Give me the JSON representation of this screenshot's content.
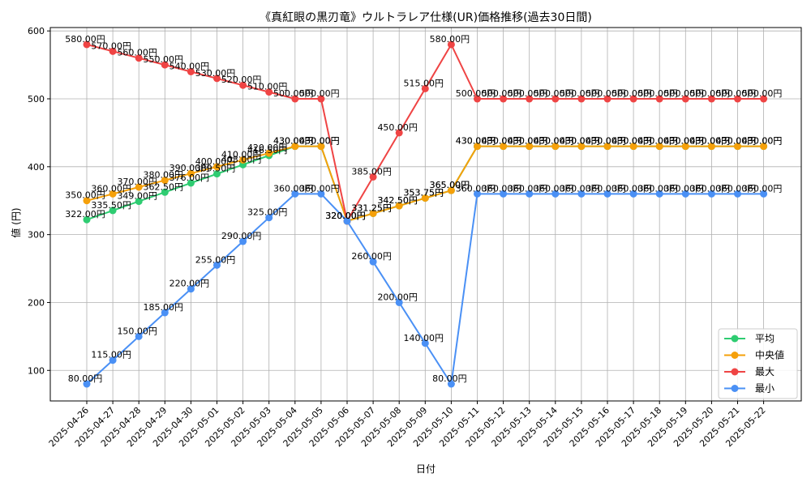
{
  "chart_data": {
    "type": "line",
    "title": "《真紅眼の黒刃竜》ウルトラレア仕様(UR)価格推移(過去30日間)",
    "xlabel": "日付",
    "ylabel": "値 (円)",
    "ylim": [
      55,
      605
    ],
    "yticks": [
      100,
      200,
      300,
      400,
      500,
      600
    ],
    "grid": true,
    "legend_position": "bottom-right",
    "categories": [
      "2025-04-26",
      "2025-04-27",
      "2025-04-28",
      "2025-04-29",
      "2025-04-30",
      "2025-05-01",
      "2025-05-02",
      "2025-05-03",
      "2025-05-04",
      "2025-05-05",
      "2025-05-06",
      "2025-05-07",
      "2025-05-08",
      "2025-05-09",
      "2025-05-10",
      "2025-05-11",
      "2025-05-12",
      "2025-05-13",
      "2025-05-14",
      "2025-05-15",
      "2025-05-16",
      "2025-05-17",
      "2025-05-18",
      "2025-05-19",
      "2025-05-20",
      "2025-05-21",
      "2025-05-22"
    ],
    "series": [
      {
        "name": "平均",
        "color": "#2ecc71",
        "values": [
          322,
          335.5,
          349,
          362.5,
          376,
          389.5,
          403,
          416.5,
          430,
          430,
          320,
          331.25,
          342.5,
          353.75,
          365,
          430,
          430,
          430,
          430,
          430,
          430,
          430,
          430,
          430,
          430,
          430,
          430
        ]
      },
      {
        "name": "中央値",
        "color": "#f5a00a",
        "values": [
          350,
          360,
          370,
          380,
          390,
          400,
          410,
          420,
          430,
          430,
          320,
          331.25,
          342.5,
          353.75,
          365,
          430,
          430,
          430,
          430,
          430,
          430,
          430,
          430,
          430,
          430,
          430,
          430
        ]
      },
      {
        "name": "最大",
        "color": "#ef4444",
        "values": [
          580,
          570,
          560,
          550,
          540,
          530,
          520,
          510,
          500,
          500,
          320,
          385,
          450,
          515,
          580,
          500,
          500,
          500,
          500,
          500,
          500,
          500,
          500,
          500,
          500,
          500,
          500
        ]
      },
      {
        "name": "最小",
        "color": "#4a90f5",
        "values": [
          80,
          115,
          150,
          185,
          220,
          255,
          290,
          325,
          360,
          360,
          320,
          260,
          200,
          140,
          80,
          360,
          360,
          360,
          360,
          360,
          360,
          360,
          360,
          360,
          360,
          360,
          360
        ]
      }
    ],
    "label_suffix": "円"
  }
}
